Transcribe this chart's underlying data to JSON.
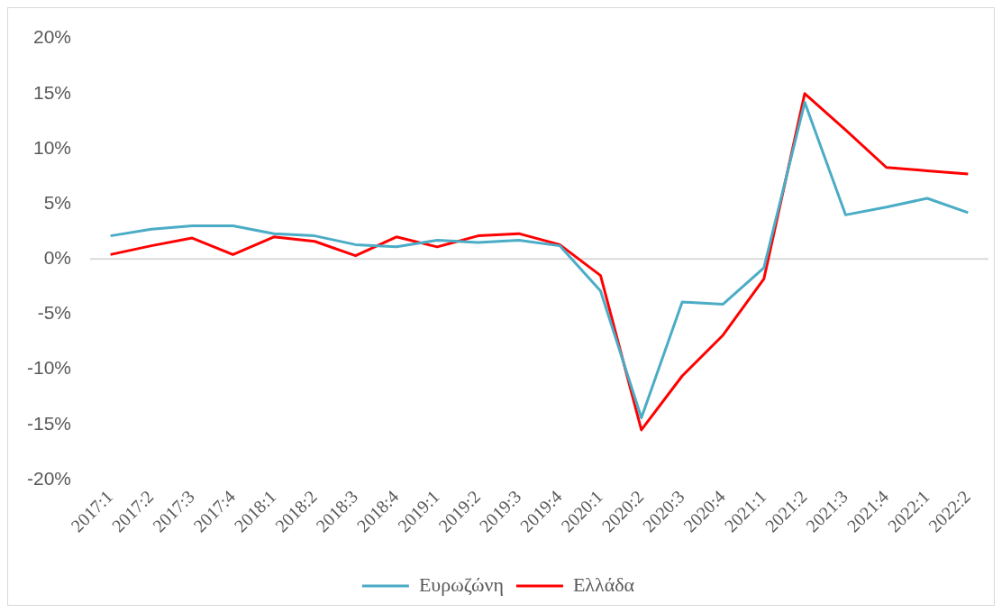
{
  "chart_data": {
    "type": "line",
    "categories": [
      "2017:1",
      "2017:2",
      "2017:3",
      "2017:4",
      "2018:1",
      "2018:2",
      "2018:3",
      "2018:4",
      "2019:1",
      "2019:2",
      "2019:3",
      "2019:4",
      "2020:1",
      "2020:2",
      "2020:3",
      "2020:4",
      "2021:1",
      "2021:2",
      "2021:3",
      "2021:4",
      "2022:1",
      "2022:2"
    ],
    "series": [
      {
        "name": "Ευρωζώνη",
        "color": "#4bacc6",
        "values": [
          2.1,
          2.7,
          3.0,
          3.0,
          2.3,
          2.1,
          1.3,
          1.1,
          1.7,
          1.5,
          1.7,
          1.2,
          -2.9,
          -14.4,
          -3.9,
          -4.1,
          -0.8,
          14.2,
          4.0,
          4.7,
          5.5,
          4.2
        ]
      },
      {
        "name": "Ελλάδα",
        "color": "#ff0000",
        "values": [
          0.4,
          1.2,
          1.9,
          0.4,
          2.0,
          1.6,
          0.3,
          2.0,
          1.1,
          2.1,
          2.3,
          1.3,
          -1.5,
          -15.5,
          -10.6,
          -6.9,
          -1.8,
          15.0,
          11.7,
          8.3,
          8.0,
          7.7
        ]
      }
    ],
    "ylim": [
      -20,
      20
    ],
    "yticks": [
      {
        "value": -20,
        "label": "-20%"
      },
      {
        "value": -15,
        "label": "-15%"
      },
      {
        "value": -10,
        "label": "-10%"
      },
      {
        "value": -5,
        "label": "-5%"
      },
      {
        "value": 0,
        "label": "0%"
      },
      {
        "value": 5,
        "label": "5%"
      },
      {
        "value": 10,
        "label": "10%"
      },
      {
        "value": 15,
        "label": "15%"
      },
      {
        "value": 20,
        "label": "20%"
      }
    ],
    "grid": false,
    "legend": "bottom",
    "ref_lines": [
      {
        "axis": "y",
        "value": 0,
        "color": "#d9d9d9"
      }
    ]
  }
}
